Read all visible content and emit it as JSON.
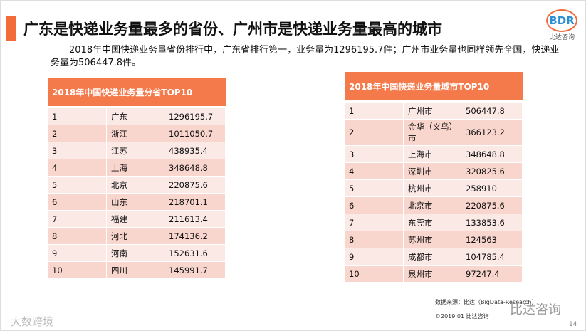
{
  "header": {
    "title": "广东是快递业务量最多的省份、广州市是快递业务量最高的城市",
    "logo": "BDR",
    "logo_caption": "比达咨询"
  },
  "intro": "2018年中国快递业务量省份排行中，广东省排行第一，业务量为1296195.7件；广州市业务量也同样领先全国，快递业务量为506447.8件。",
  "tables": [
    {
      "title": "2018年中国快递业务量分省TOP10",
      "rows": [
        [
          "1",
          "广东",
          "1296195.7"
        ],
        [
          "2",
          "浙江",
          "1011050.7"
        ],
        [
          "3",
          "江苏",
          "438935.4"
        ],
        [
          "4",
          "上海",
          "348648.8"
        ],
        [
          "5",
          "北京",
          "220875.6"
        ],
        [
          "6",
          "山东",
          "218701.1"
        ],
        [
          "7",
          "福建",
          "211613.4"
        ],
        [
          "8",
          "河北",
          "174136.2"
        ],
        [
          "9",
          "河南",
          "152631.6"
        ],
        [
          "10",
          "四川",
          "145991.7"
        ]
      ]
    },
    {
      "title": "2018年中国快递业务量城市TOP10",
      "rows": [
        [
          "1",
          "广州市",
          "506447.8"
        ],
        [
          "2",
          "金华（义乌）市",
          "366123.2"
        ],
        [
          "3",
          "上海市",
          "348648.8"
        ],
        [
          "4",
          "深圳市",
          "320825.6"
        ],
        [
          "5",
          "杭州市",
          "258910"
        ],
        [
          "6",
          "北京市",
          "220875.6"
        ],
        [
          "7",
          "东莞市",
          "133853.6"
        ],
        [
          "8",
          "苏州市",
          "124563"
        ],
        [
          "9",
          "成都市",
          "104785.4"
        ],
        [
          "10",
          "泉州市",
          "97247.4"
        ]
      ]
    }
  ],
  "footer": {
    "source": "数据来源：比达（BigData-Research）",
    "copyright": "©2019.01  比达咨询",
    "page": "14",
    "watermark_left": "大数跨境",
    "watermark_right": "比达咨询"
  }
}
